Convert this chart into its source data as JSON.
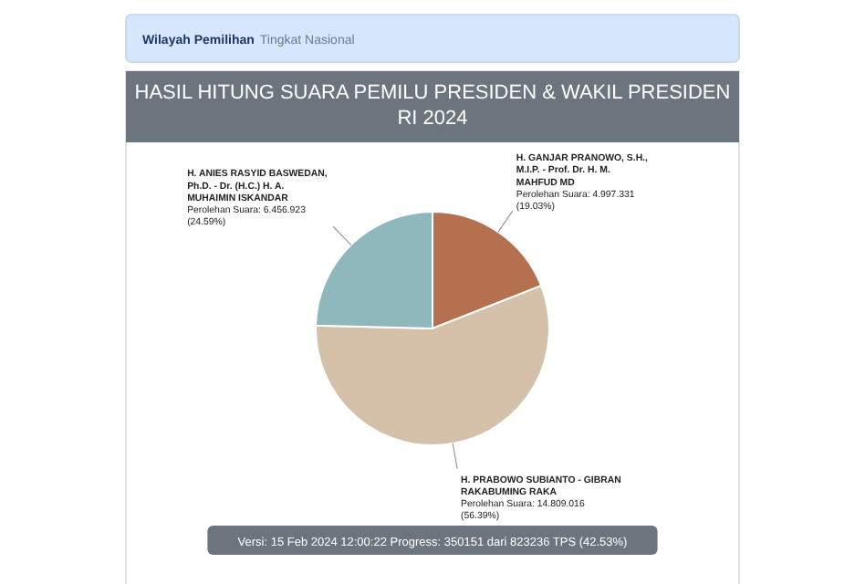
{
  "chart_data": {
    "type": "pie",
    "title": "HASIL HITUNG SUARA PEMILU PRESIDEN & WAKIL PRESIDEN RI 2024",
    "subtitle": "Wilayah Pemilihan Tingkat Nasional",
    "categories": [
      "H. GANJAR PRANOWO, S.H., M.I.P. - Prof. Dr. H. M. MAHFUD MD",
      "H. PRABOWO SUBIANTO - GIBRAN RAKABUMING RAKA",
      "H. ANIES RASYID BASWEDAN, Ph.D. - Dr. (H.C.) H. A. MUHAIMIN ISKANDAR"
    ],
    "values": [
      4997331,
      14809016,
      6456923
    ],
    "colors": [
      "#b5704f",
      "#d5c0aa",
      "#8fb8bd"
    ],
    "value_labels": [
      "Perolehan Suara: 4.997.331 (19.03%)",
      "Perolehan Suara: 14.809.016 (56.39%)",
      "Perolehan Suara: 6.456.923 (24.59%)"
    ],
    "annotations": [
      "Versi: 15 Feb 2024 12:00:22 Progress: 350151 dari 823236 TPS (42.53%)"
    ]
  }
}
